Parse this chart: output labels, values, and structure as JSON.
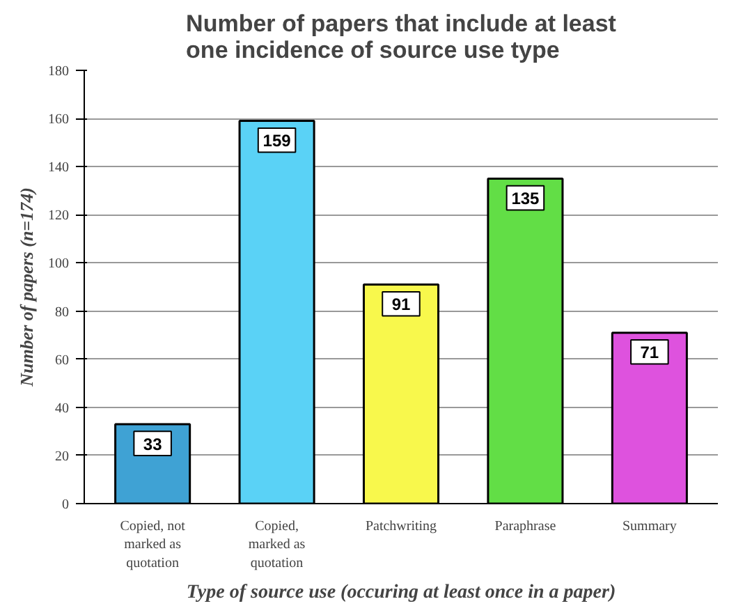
{
  "chart_data": {
    "type": "bar",
    "title": "Number of papers that include at least one incidence of source use type",
    "xlabel": "Type of source use (occuring at least once in a paper)",
    "ylabel": "Number of papers (n=174)",
    "categories": [
      "Copied, not marked as quotation",
      "Copied, marked as quotation",
      "Patchwriting",
      "Paraphrase",
      "Summary"
    ],
    "values": [
      33,
      159,
      91,
      135,
      71
    ],
    "colors": [
      "#3fa2d4",
      "#5ad2f6",
      "#f8f84c",
      "#62de46",
      "#de52de"
    ],
    "ylim": [
      0,
      180
    ],
    "yticks": [
      0,
      20,
      40,
      60,
      80,
      100,
      120,
      140,
      160,
      180
    ],
    "grid": "y",
    "data_labels": true
  }
}
